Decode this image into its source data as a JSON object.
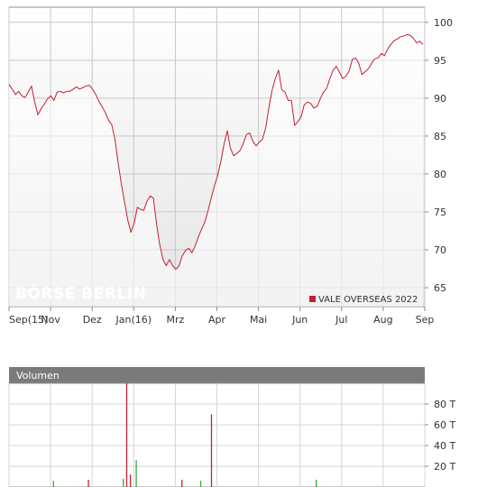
{
  "chart_data": [
    {
      "type": "line",
      "title": "",
      "xlabel": "",
      "ylabel": "",
      "ylim": [
        62.5,
        102
      ],
      "y_ticks": [
        65,
        70,
        75,
        80,
        85,
        90,
        95,
        100
      ],
      "x_tick_labels": [
        "Sep(15)",
        "Nov",
        "Dez",
        "Jan(16)",
        "Mrz",
        "Apr",
        "Mai",
        "Jun",
        "Jul",
        "Aug",
        "Sep"
      ],
      "grid": true,
      "watermark": "BÖRSE BERLIN",
      "legend": "bottom-right",
      "series": [
        {
          "name": "VALE OVERSEAS 2022",
          "color": "#c42033",
          "values": [
            91.8,
            91.2,
            90.5,
            90.9,
            90.3,
            90.1,
            90.8,
            91.6,
            89.5,
            87.8,
            88.6,
            89.2,
            89.9,
            90.3,
            89.7,
            90.8,
            90.9,
            90.7,
            90.9,
            90.9,
            91.2,
            91.5,
            91.2,
            91.4,
            91.6,
            91.7,
            91.2,
            90.5,
            89.6,
            88.9,
            88.1,
            87.1,
            86.5,
            84.6,
            81.5,
            78.7,
            76.3,
            73.9,
            72.3,
            73.5,
            75.6,
            75.3,
            75.2,
            76.4,
            77.1,
            76.8,
            73.3,
            70.6,
            68.7,
            67.9,
            68.7,
            67.9,
            67.4,
            67.9,
            69.2,
            69.9,
            70.2,
            69.6,
            70.5,
            71.7,
            72.7,
            73.6,
            75.1,
            76.8,
            78.4,
            79.8,
            81.6,
            83.9,
            85.7,
            83.4,
            82.4,
            82.7,
            83.1,
            84.0,
            85.2,
            85.4,
            84.3,
            83.7,
            84.2,
            84.6,
            86.1,
            88.8,
            91.1,
            92.6,
            93.7,
            91.1,
            90.8,
            89.7,
            89.7,
            86.4,
            86.9,
            87.5,
            89.1,
            89.5,
            89.3,
            88.7,
            88.9,
            89.9,
            90.8,
            91.3,
            92.6,
            93.7,
            94.2,
            93.4,
            92.6,
            92.9,
            93.6,
            95.1,
            95.3,
            94.6,
            93.1,
            93.5,
            93.9,
            94.6,
            95.2,
            95.3,
            95.9,
            95.6,
            96.5,
            97.1,
            97.6,
            97.8,
            98.1,
            98.2,
            98.4,
            98.3,
            97.9,
            97.3,
            97.5,
            97.1
          ]
        }
      ]
    },
    {
      "type": "bar",
      "title": "Volumen",
      "xlabel": "",
      "ylabel": "",
      "ylim": [
        0,
        100
      ],
      "y_ticks": [
        20,
        40,
        60,
        80
      ],
      "y_tick_labels": [
        "20 T",
        "40 T",
        "60 T",
        "80 T"
      ],
      "x_range": [
        0,
        1
      ],
      "grid": true,
      "series": [
        {
          "name": "",
          "bars": [
            {
              "x": 0.107,
              "value": 6,
              "color": "#38a838"
            },
            {
              "x": 0.191,
              "value": 7,
              "color": "#c42033"
            },
            {
              "x": 0.275,
              "value": 8,
              "color": "#38a838"
            },
            {
              "x": 0.283,
              "value": 100,
              "color": "#c42033"
            },
            {
              "x": 0.292,
              "value": 12,
              "color": "#c42033"
            },
            {
              "x": 0.306,
              "value": 26,
              "color": "#38a838"
            },
            {
              "x": 0.416,
              "value": 7,
              "color": "#c42033"
            },
            {
              "x": 0.461,
              "value": 6,
              "color": "#38a838"
            },
            {
              "x": 0.487,
              "value": 70,
              "color": "#c42033"
            },
            {
              "x": 0.739,
              "value": 7,
              "color": "#38a838"
            }
          ]
        }
      ]
    }
  ]
}
